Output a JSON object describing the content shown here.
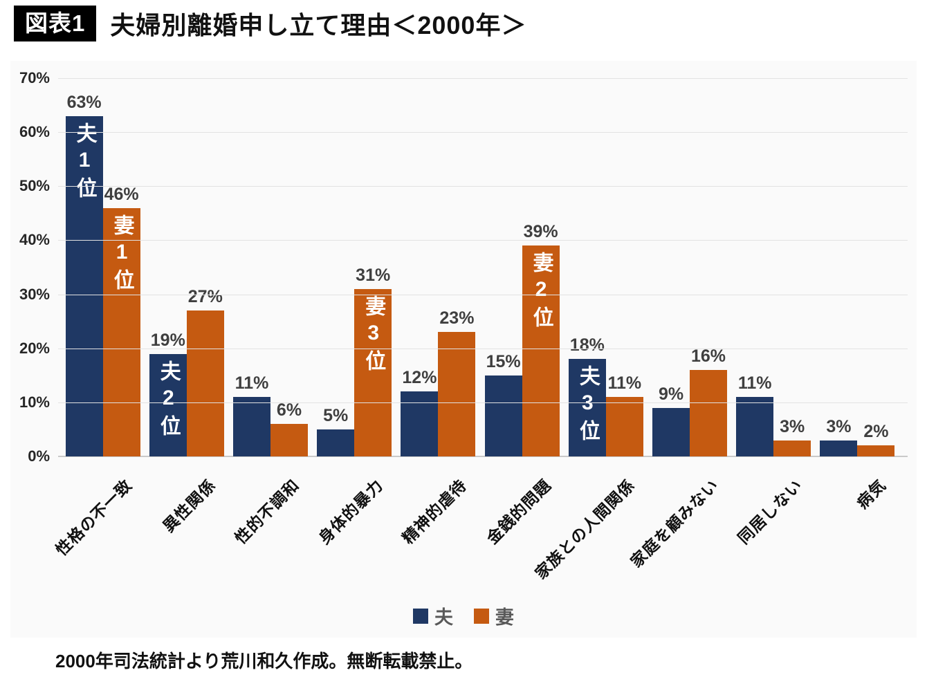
{
  "header": {
    "badge": "図表1",
    "title": "夫婦別離婚申し立て理由＜2000年＞"
  },
  "footer": {
    "note": "2000年司法統計より荒川和久作成。無断転載禁止。"
  },
  "colors": {
    "husband": "#1F3864",
    "wife": "#C55A11",
    "value_label": "#3F3F3F",
    "panel_background": "#FAFAFA",
    "gridline": "#E2E2E2"
  },
  "chart_data": {
    "type": "bar",
    "title": "夫婦別離婚申し立て理由＜2000年＞",
    "categories": [
      "性格の不一致",
      "異性関係",
      "性的不調和",
      "身体的暴力",
      "精神的虐待",
      "金銭的問題",
      "家族との人間関係",
      "家庭を顧みない",
      "同居しない",
      "病気"
    ],
    "series": [
      {
        "key": "husband",
        "name": "夫",
        "color": "#1F3864",
        "values": [
          63,
          19,
          11,
          5,
          12,
          15,
          18,
          9,
          11,
          3
        ],
        "annotations": {
          "0": "夫1位",
          "1": "夫2位",
          "6": "夫3位"
        }
      },
      {
        "key": "wife",
        "name": "妻",
        "color": "#C55A11",
        "values": [
          46,
          27,
          6,
          31,
          23,
          39,
          11,
          16,
          3,
          2
        ],
        "annotations": {
          "0": "妻1位",
          "3": "妻3位",
          "5": "妻2位"
        }
      }
    ],
    "value_suffix": "%",
    "xlabel": "",
    "ylabel": "",
    "ylim": [
      0,
      70
    ],
    "ytick_step": 10,
    "ytick_suffix": "%",
    "grid": true,
    "legend_position": "bottom"
  }
}
